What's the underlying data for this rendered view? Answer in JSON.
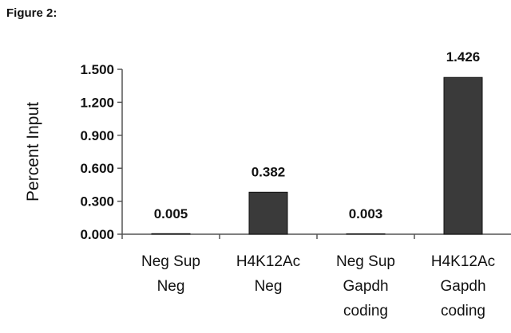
{
  "figure_label": "Figure 2:",
  "chart_data": {
    "type": "bar",
    "ylabel": "Percent Input",
    "xlabel": "",
    "categories": [
      [
        "Neg Sup",
        "Neg"
      ],
      [
        "H4K12Ac",
        "Neg"
      ],
      [
        "Neg Sup",
        "Gapdh",
        "coding"
      ],
      [
        "H4K12Ac",
        "Gapdh",
        "coding"
      ]
    ],
    "values": [
      0.005,
      0.382,
      0.003,
      1.426
    ],
    "data_labels": [
      "0.005",
      "0.382",
      "0.003",
      "1.426"
    ],
    "yticks": [
      "0.000",
      "0.300",
      "0.600",
      "0.900",
      "1.200",
      "1.500"
    ],
    "ylim": [
      0,
      1.5
    ],
    "grid": false,
    "bar_color": "#3a3a3a",
    "axis_color": "#555555"
  }
}
